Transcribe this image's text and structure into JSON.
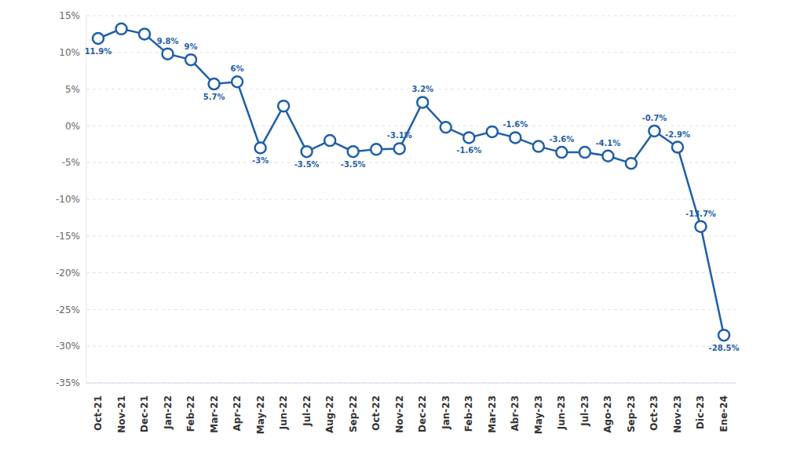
{
  "chart_data": {
    "type": "line",
    "categories": [
      "Oct-21",
      "Nov-21",
      "Dec-21",
      "Jan-22",
      "Feb-22",
      "Mar-22",
      "Apr-22",
      "May-22",
      "Jun-22",
      "Jul-22",
      "Aug-22",
      "Sep-22",
      "Oct-22",
      "Nov-22",
      "Dec-22",
      "Jan-23",
      "Feb-23",
      "Mar-23",
      "Abr-23",
      "May-23",
      "Jun-23",
      "Jul-23",
      "Ago-23",
      "Sep-23",
      "Oct-23",
      "Nov-23",
      "Dic-23",
      "Ene-24"
    ],
    "values": [
      11.9,
      13.2,
      12.5,
      9.8,
      9,
      5.7,
      6,
      -3,
      2.7,
      -3.5,
      -2.0,
      -3.5,
      -3.2,
      -3.1,
      3.2,
      -0.2,
      -1.6,
      -0.8,
      -1.6,
      -2.8,
      -3.6,
      -3.6,
      -4.1,
      -5.1,
      -0.7,
      -2.9,
      -13.7,
      -28.5
    ],
    "value_labels": [
      "11.9%",
      null,
      null,
      "9.8%",
      "9%",
      "5.7%",
      "6%",
      "-3%",
      null,
      "-3.5%",
      null,
      "-3.5%",
      null,
      "-3.1%",
      "3.2%",
      null,
      "-1.6%",
      null,
      "-1.6%",
      null,
      "-3.6%",
      null,
      "-4.1%",
      null,
      "-0.7%",
      "-2.9%",
      "-13.7%",
      "-28.5%"
    ],
    "color": "#1f5fa6",
    "marker": "circle",
    "data_labels": true,
    "grid": true,
    "ylim": [
      -35,
      15
    ],
    "yticks": [
      {
        "value": -35,
        "label": "-35%"
      },
      {
        "value": -30,
        "label": "-30%"
      },
      {
        "value": -25,
        "label": "-25%"
      },
      {
        "value": -20,
        "label": "-20%"
      },
      {
        "value": -15,
        "label": "-15%"
      },
      {
        "value": -10,
        "label": "-10%"
      },
      {
        "value": -5,
        "label": "-5%"
      },
      {
        "value": 0,
        "label": "0%"
      },
      {
        "value": 5,
        "label": "5%"
      },
      {
        "value": 10,
        "label": "10%"
      },
      {
        "value": 15,
        "label": "15%"
      }
    ]
  }
}
